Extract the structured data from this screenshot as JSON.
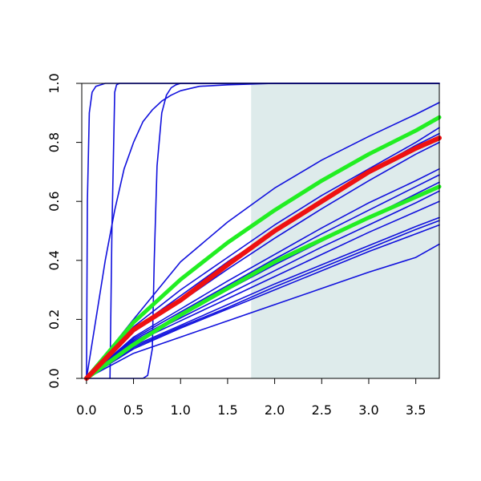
{
  "chart_data": {
    "type": "line",
    "title": "",
    "xlabel": "",
    "ylabel": "",
    "xlim": [
      -0.05,
      3.75
    ],
    "ylim": [
      0.0,
      1.0
    ],
    "x_ticks": [
      0.0,
      0.5,
      1.0,
      1.5,
      2.0,
      2.5,
      3.0,
      3.5
    ],
    "x_tick_labels": [
      "0.0",
      "0.5",
      "1.0",
      "1.5",
      "2.0",
      "2.5",
      "3.0",
      "3.5"
    ],
    "y_ticks": [
      0.0,
      0.2,
      0.4,
      0.6,
      0.8,
      1.0
    ],
    "y_tick_labels": [
      "0.0",
      "0.2",
      "0.4",
      "0.6",
      "0.8",
      "1.0"
    ],
    "grid": false,
    "legend": "none",
    "shaded_region": {
      "x_from": 1.75,
      "x_to": 3.75,
      "color": "#deebeb"
    },
    "colors": {
      "background_curves": "#1010dd",
      "highlight": "#ee1111",
      "bounds": "#22ee22"
    },
    "series": [
      {
        "color": "#ee1111",
        "width": 6,
        "x": [
          0,
          0.5,
          1,
          1.5,
          2,
          2.5,
          3,
          3.5,
          3.75
        ],
        "y": [
          0,
          0.165,
          0.265,
          0.385,
          0.5,
          0.6,
          0.7,
          0.78,
          0.815
        ]
      },
      {
        "color": "#22ee22",
        "width": 5,
        "x": [
          0,
          0.5,
          1,
          1.5,
          2,
          2.5,
          3,
          3.5,
          3.75
        ],
        "y": [
          0,
          0.19,
          0.335,
          0.46,
          0.57,
          0.67,
          0.76,
          0.84,
          0.885
        ]
      },
      {
        "color": "#22ee22",
        "width": 5,
        "x": [
          0,
          0.5,
          1,
          1.5,
          2,
          2.5,
          3,
          3.5,
          3.75
        ],
        "y": [
          0,
          0.115,
          0.215,
          0.305,
          0.395,
          0.47,
          0.545,
          0.615,
          0.65
        ]
      },
      {
        "color": "#1010dd",
        "width": 1.6,
        "x": [
          0,
          0.01,
          0.03,
          0.06,
          0.1,
          0.2,
          3.75
        ],
        "y": [
          0,
          0.6,
          0.9,
          0.97,
          0.99,
          1.0,
          1.0
        ]
      },
      {
        "color": "#1010dd",
        "width": 1.6,
        "x": [
          0.25,
          0.27,
          0.3,
          0.32,
          0.35,
          0.4,
          3.75
        ],
        "y": [
          0,
          0.5,
          0.97,
          0.995,
          1.0,
          1.0,
          1.0
        ]
      },
      {
        "color": "#1010dd",
        "width": 1.6,
        "x": [
          0,
          0.1,
          0.2,
          0.3,
          0.4,
          0.5,
          0.6,
          0.7,
          0.8,
          0.9,
          1.0,
          1.2,
          1.5,
          2.0,
          3.75
        ],
        "y": [
          0,
          0.2,
          0.4,
          0.57,
          0.71,
          0.8,
          0.87,
          0.91,
          0.94,
          0.96,
          0.975,
          0.99,
          0.995,
          1.0,
          1.0
        ]
      },
      {
        "color": "#1010dd",
        "width": 1.6,
        "x": [
          0,
          0.6,
          0.65,
          0.7,
          0.72,
          0.75,
          0.8,
          0.85,
          0.9,
          0.95,
          1.0,
          1.2,
          1.5,
          3.75
        ],
        "y": [
          0,
          0.0,
          0.01,
          0.1,
          0.4,
          0.72,
          0.9,
          0.96,
          0.985,
          0.995,
          1.0,
          1.0,
          1.0,
          1.0
        ]
      },
      {
        "color": "#1010dd",
        "width": 1.6,
        "x": [
          0,
          0.5,
          1,
          1.5,
          2,
          2.5,
          3,
          3.5,
          3.75
        ],
        "y": [
          0,
          0.2,
          0.395,
          0.53,
          0.645,
          0.74,
          0.82,
          0.895,
          0.935
        ]
      },
      {
        "color": "#1010dd",
        "width": 1.6,
        "x": [
          0,
          0.5,
          1,
          1.5,
          2,
          2.5,
          3,
          3.5,
          3.75
        ],
        "y": [
          0,
          0.175,
          0.3,
          0.41,
          0.52,
          0.62,
          0.71,
          0.8,
          0.85
        ]
      },
      {
        "color": "#1010dd",
        "width": 1.6,
        "x": [
          0,
          0.5,
          1,
          1.5,
          2,
          2.5,
          3,
          3.5,
          3.75
        ],
        "y": [
          0,
          0.165,
          0.28,
          0.395,
          0.5,
          0.6,
          0.7,
          0.79,
          0.83
        ]
      },
      {
        "color": "#1010dd",
        "width": 1.6,
        "x": [
          0,
          0.5,
          1,
          1.5,
          2,
          2.5,
          3,
          3.5,
          3.75
        ],
        "y": [
          0,
          0.158,
          0.26,
          0.37,
          0.475,
          0.575,
          0.67,
          0.76,
          0.8
        ]
      },
      {
        "color": "#1010dd",
        "width": 1.6,
        "x": [
          0,
          0.5,
          1,
          1.5,
          2,
          2.5,
          3,
          3.5,
          3.75
        ],
        "y": [
          0,
          0.14,
          0.235,
          0.33,
          0.42,
          0.51,
          0.595,
          0.67,
          0.71
        ]
      },
      {
        "color": "#1010dd",
        "width": 1.6,
        "x": [
          0,
          0.5,
          1,
          1.5,
          2,
          2.5,
          3,
          3.5,
          3.75
        ],
        "y": [
          0,
          0.135,
          0.225,
          0.315,
          0.405,
          0.49,
          0.57,
          0.65,
          0.69
        ]
      },
      {
        "color": "#1010dd",
        "width": 1.6,
        "x": [
          0,
          0.5,
          1,
          1.5,
          2,
          2.5,
          3,
          3.5,
          3.75
        ],
        "y": [
          0,
          0.13,
          0.215,
          0.3,
          0.385,
          0.465,
          0.545,
          0.625,
          0.665
        ]
      },
      {
        "color": "#1010dd",
        "width": 1.6,
        "x": [
          0,
          0.5,
          1,
          1.5,
          2,
          2.5,
          3,
          3.5,
          3.75
        ],
        "y": [
          0,
          0.125,
          0.205,
          0.285,
          0.365,
          0.445,
          0.52,
          0.595,
          0.635
        ]
      },
      {
        "color": "#1010dd",
        "width": 1.6,
        "x": [
          0,
          0.5,
          1,
          1.5,
          2,
          2.5,
          3,
          3.5,
          3.75
        ],
        "y": [
          0,
          0.12,
          0.195,
          0.27,
          0.345,
          0.42,
          0.495,
          0.565,
          0.6
        ]
      },
      {
        "color": "#1010dd",
        "width": 1.6,
        "x": [
          0,
          0.5,
          1,
          1.5,
          2,
          2.5,
          3,
          3.5,
          3.75
        ],
        "y": [
          0,
          0.11,
          0.18,
          0.25,
          0.32,
          0.385,
          0.45,
          0.515,
          0.545
        ]
      },
      {
        "color": "#1010dd",
        "width": 1.6,
        "x": [
          0,
          0.5,
          1,
          1.5,
          2,
          2.5,
          3,
          3.5,
          3.75
        ],
        "y": [
          0,
          0.105,
          0.175,
          0.24,
          0.31,
          0.375,
          0.44,
          0.505,
          0.535
        ]
      },
      {
        "color": "#1010dd",
        "width": 1.6,
        "x": [
          0,
          0.5,
          1,
          1.5,
          2,
          2.5,
          3,
          3.5,
          3.75
        ],
        "y": [
          0,
          0.1,
          0.17,
          0.235,
          0.3,
          0.365,
          0.43,
          0.49,
          0.52
        ]
      },
      {
        "color": "#1010dd",
        "width": 1.6,
        "x": [
          0,
          0.5,
          1,
          1.5,
          2,
          2.5,
          3,
          3.5,
          3.75
        ],
        "y": [
          0,
          0.085,
          0.14,
          0.195,
          0.25,
          0.305,
          0.36,
          0.41,
          0.455
        ]
      }
    ]
  }
}
